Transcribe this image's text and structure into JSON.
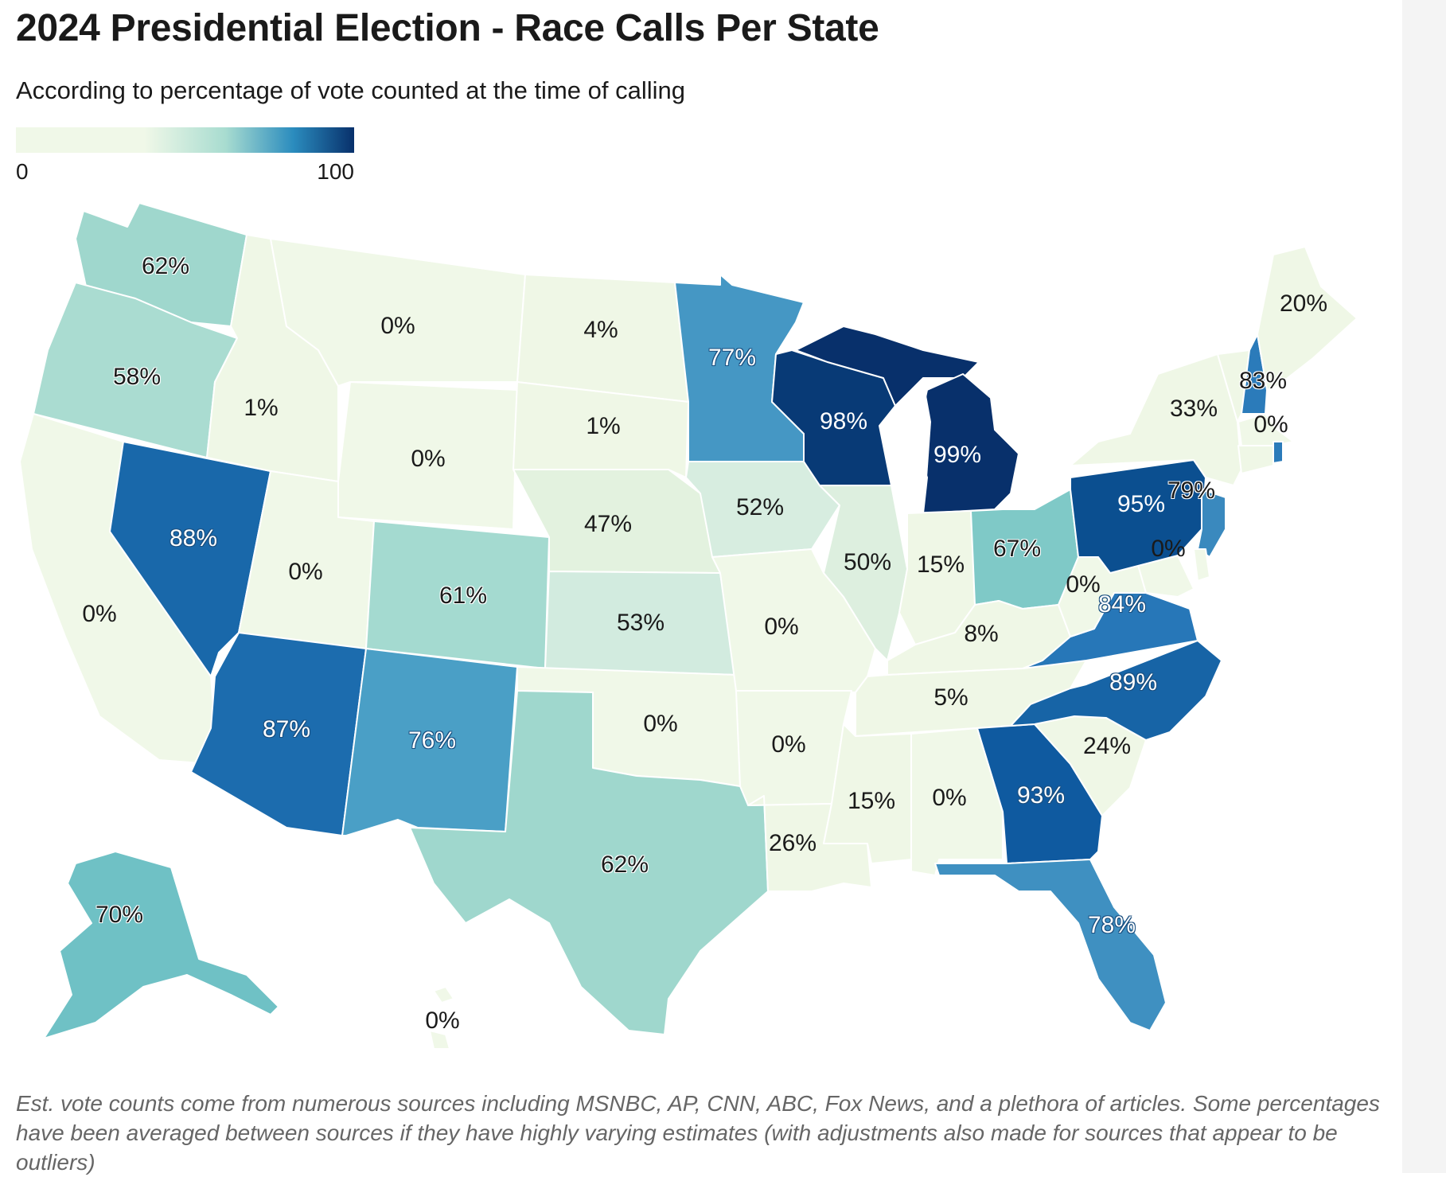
{
  "title": "2024 Presidential Election - Race Calls Per State",
  "subtitle": "According to percentage of vote counted at the time of calling",
  "legend": {
    "min_label": "0",
    "max_label": "100"
  },
  "colors": {
    "c0": "#f0f8e8",
    "c_low": "#eff7e6",
    "c47": "#e3f2df",
    "c50": "#ddefdf",
    "c52": "#d7ede0",
    "c53": "#d2ebdf",
    "c58": "#aadcd1",
    "c61": "#a4dad0",
    "c62": "#9fd7cd",
    "c67": "#7fc9c7",
    "c70": "#6fc1c5",
    "c76": "#4a9fc6",
    "c77": "#4597c4",
    "c78": "#3f90c1",
    "c79": "#3a89be",
    "c83": "#2b7bba",
    "c84": "#2777b8",
    "c87": "#1c6cae",
    "c88": "#1968aa",
    "c89": "#1764a6",
    "c93": "#0f5aa0",
    "c95": "#0b4f90",
    "c98": "#083a76",
    "c99": "#08306b"
  },
  "states": {
    "WA": "62%",
    "OR": "58%",
    "CA": "0%",
    "NV": "88%",
    "ID": "1%",
    "MT": "0%",
    "WY": "0%",
    "UT": "0%",
    "AZ": "87%",
    "CO": "61%",
    "NM": "76%",
    "ND": "4%",
    "SD": "1%",
    "NE": "47%",
    "KS": "53%",
    "OK": "0%",
    "TX": "62%",
    "MN": "77%",
    "IA": "52%",
    "MO": "0%",
    "AR": "0%",
    "LA": "26%",
    "WI": "98%",
    "IL": "50%",
    "MI": "99%",
    "IN": "15%",
    "OH": "67%",
    "KY": "8%",
    "TN": "5%",
    "MS": "15%",
    "AL": "0%",
    "GA": "93%",
    "FL": "78%",
    "SC": "24%",
    "NC": "89%",
    "VA": "84%",
    "WV": "0%",
    "PA": "95%",
    "NY": "33%",
    "NJ": "79%",
    "MD": "0%",
    "ME": "20%",
    "NH": "83%",
    "MA": "0%",
    "AK": "70%",
    "HI": "0%"
  },
  "footnote": "Est. vote counts come from numerous sources including MSNBC, AP, CNN, ABC, Fox News, and a plethora of articles. Some percentages have been averaged between sources if they have highly varying estimates (with adjustments also made for sources that appear to be outliers)"
}
